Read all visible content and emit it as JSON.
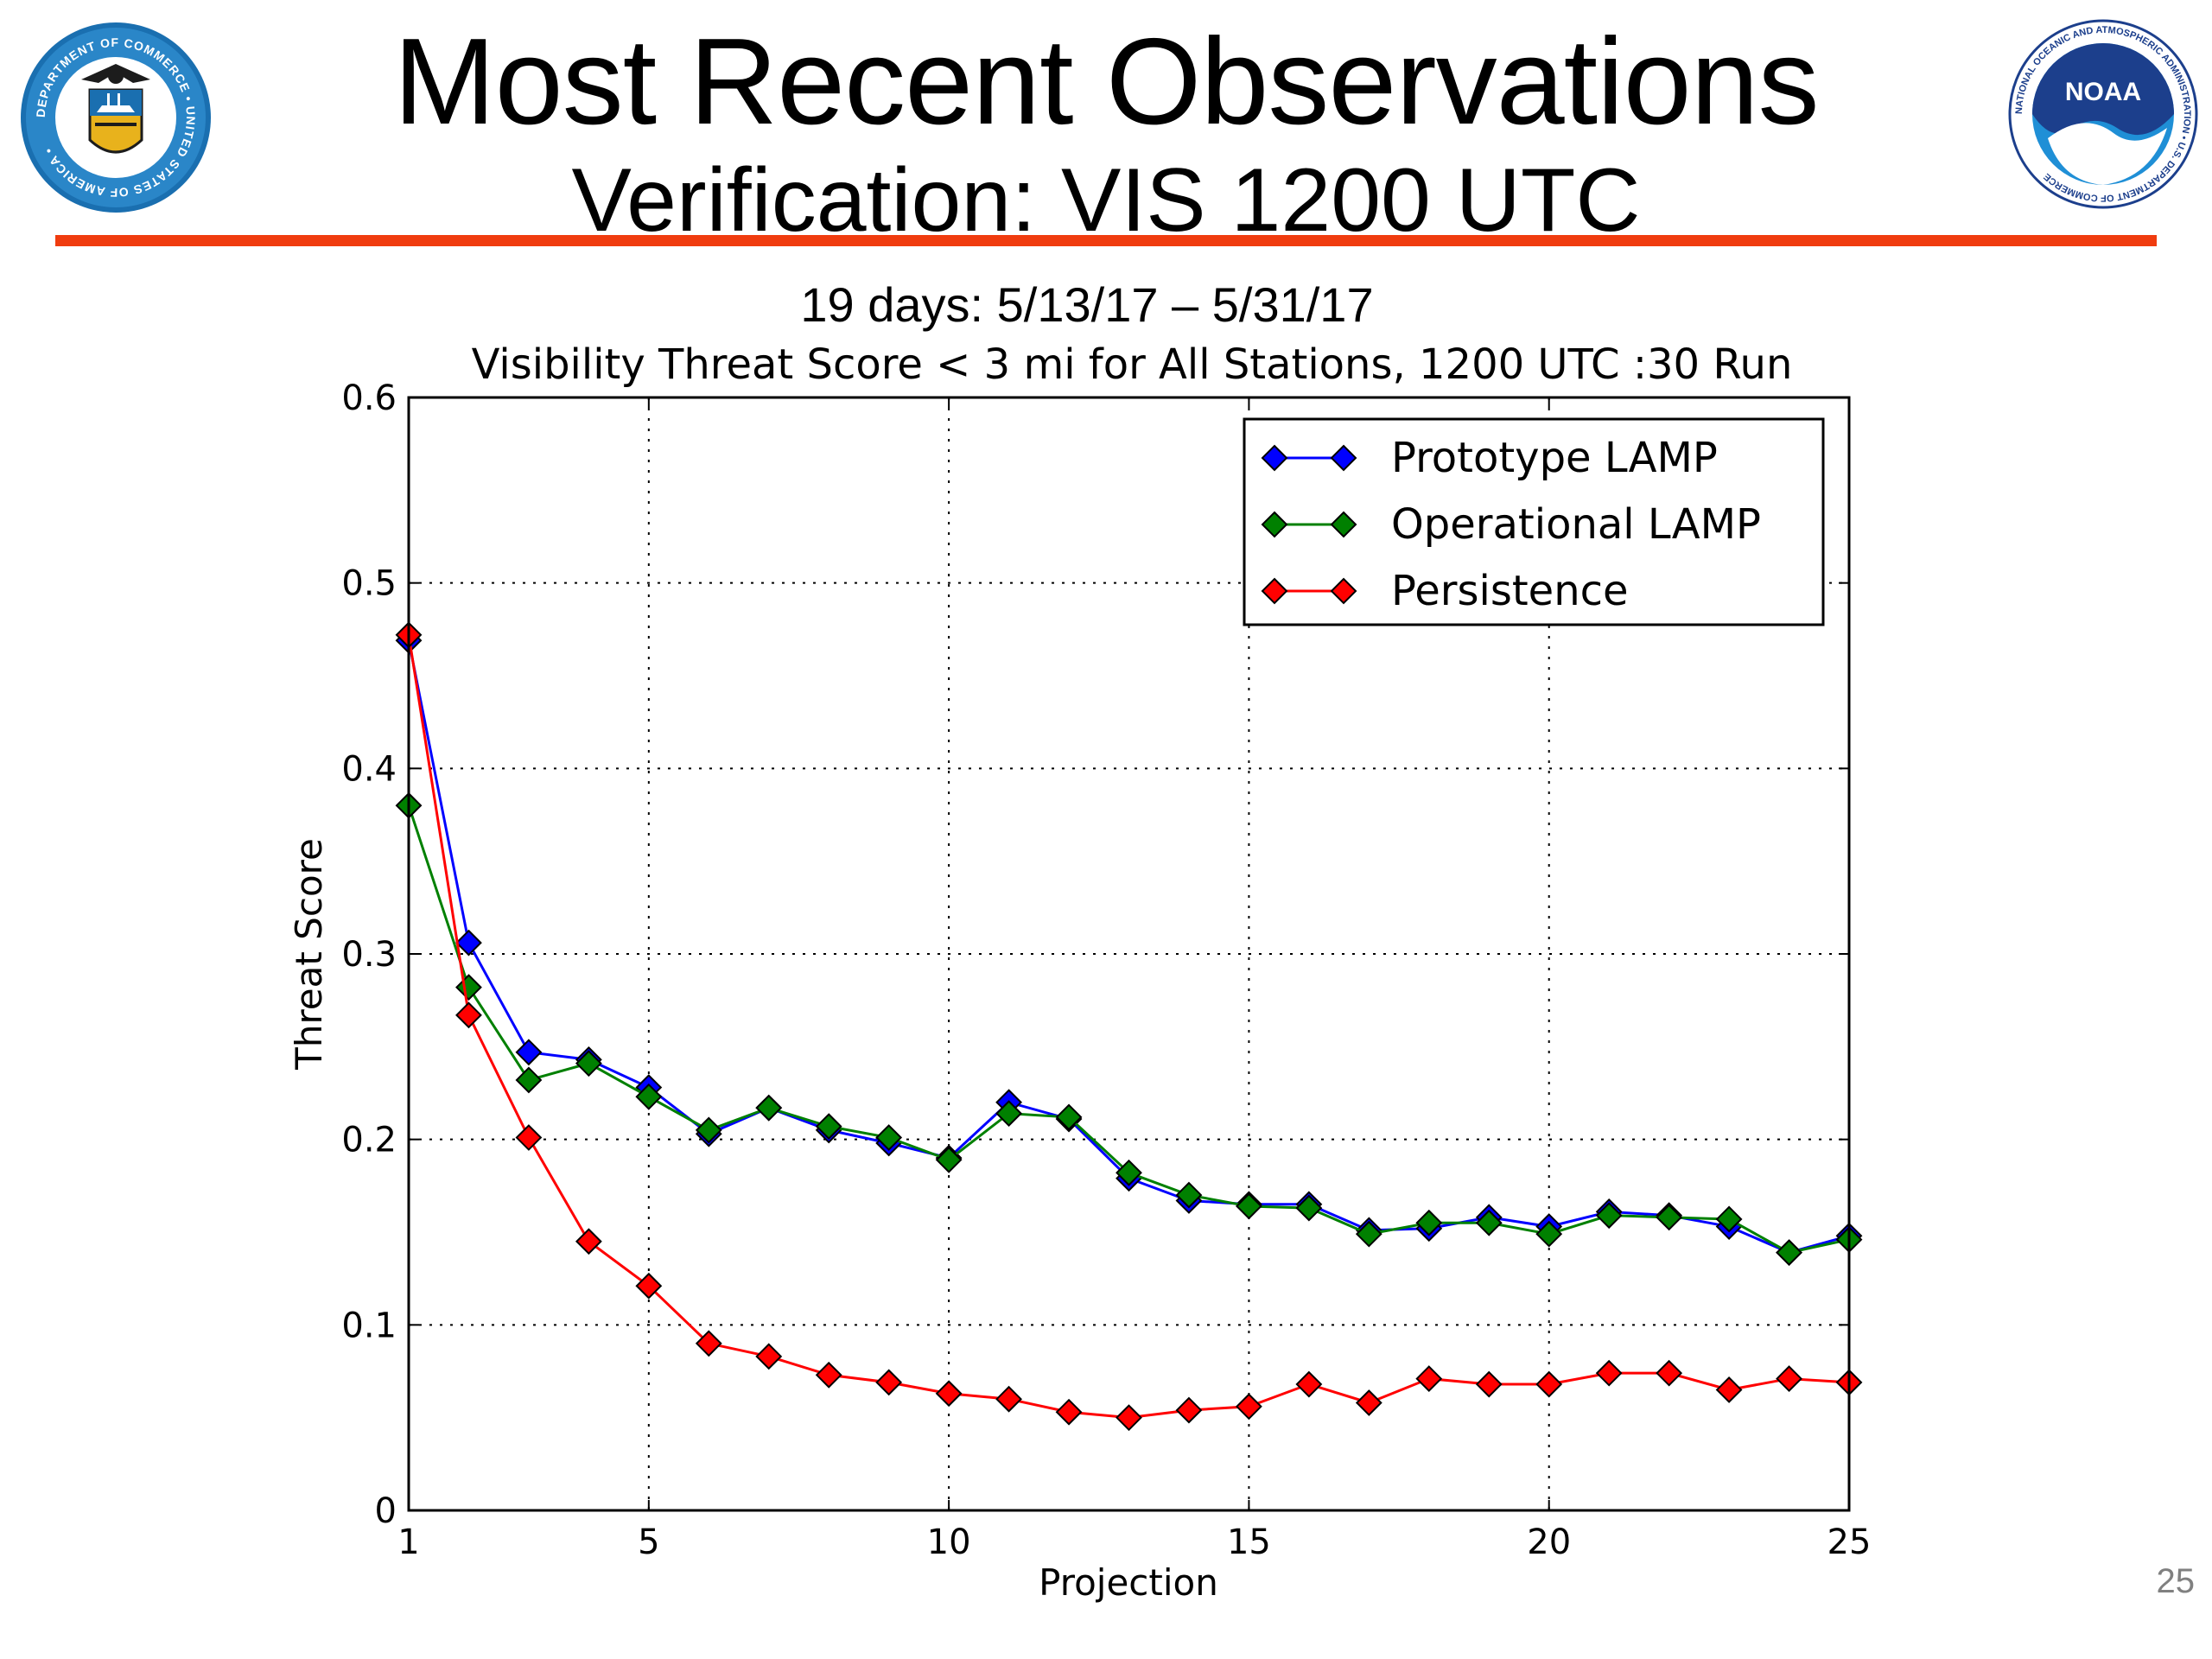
{
  "header": {
    "title": "Most Recent Observations",
    "subtitle": "Verification: VIS 1200 UTC",
    "left_logo": {
      "name": "department-of-commerce-seal",
      "ring_text": "DEPARTMENT OF COMMERCE • UNITED STATES OF AMERICA •"
    },
    "right_logo": {
      "name": "noaa-logo",
      "center_text": "NOAA",
      "ring_text": "NATIONAL OCEANIC AND ATMOSPHERIC ADMINISTRATION • U.S. DEPARTMENT OF COMMERCE"
    },
    "rule_color": "#f03c0f"
  },
  "page_number": "25",
  "chart_data": {
    "type": "line",
    "title": "19 days: 5/13/17 – 5/31/17",
    "subtitle": "Visibility Threat Score < 3 mi for All Stations, 1200 UTC :30 Run",
    "xlabel": "Projection",
    "ylabel": "Threat Score",
    "xlim": [
      1,
      25
    ],
    "ylim": [
      0,
      0.6
    ],
    "x_ticks": [
      1,
      5,
      10,
      15,
      20,
      25
    ],
    "x_tick_labels": [
      "1",
      "5",
      "10",
      "15",
      "20",
      "25"
    ],
    "y_ticks": [
      0,
      0.1,
      0.2,
      0.3,
      0.4,
      0.5,
      0.6
    ],
    "y_tick_labels": [
      "0",
      "0.1",
      "0.2",
      "0.3",
      "0.4",
      "0.5",
      "0.6"
    ],
    "grid": true,
    "legend_position": "top-right",
    "x": [
      1,
      2,
      3,
      4,
      5,
      6,
      7,
      8,
      9,
      10,
      11,
      12,
      13,
      14,
      15,
      16,
      17,
      18,
      19,
      20,
      21,
      22,
      23,
      24,
      25
    ],
    "series": [
      {
        "name": "Prototype LAMP",
        "color": "#0000ff",
        "marker": "diamond",
        "values": [
          0.469,
          0.306,
          0.247,
          0.243,
          0.228,
          0.203,
          0.217,
          0.205,
          0.198,
          0.19,
          0.22,
          0.211,
          0.179,
          0.167,
          0.165,
          0.165,
          0.151,
          0.152,
          0.158,
          0.153,
          0.161,
          0.159,
          0.153,
          0.139,
          0.148
        ]
      },
      {
        "name": "Operational LAMP",
        "color": "#008000",
        "marker": "diamond",
        "values": [
          0.38,
          0.282,
          0.232,
          0.241,
          0.223,
          0.205,
          0.217,
          0.207,
          0.201,
          0.189,
          0.214,
          0.212,
          0.182,
          0.17,
          0.164,
          0.163,
          0.149,
          0.155,
          0.155,
          0.149,
          0.159,
          0.158,
          0.157,
          0.139,
          0.146
        ]
      },
      {
        "name": "Persistence",
        "color": "#ff0000",
        "marker": "diamond",
        "values": [
          0.472,
          0.267,
          0.201,
          0.145,
          0.121,
          0.09,
          0.083,
          0.073,
          0.069,
          0.063,
          0.06,
          0.053,
          0.05,
          0.054,
          0.056,
          0.068,
          0.058,
          0.071,
          0.068,
          0.068,
          0.074,
          0.074,
          0.065,
          0.071,
          0.069
        ]
      }
    ]
  }
}
